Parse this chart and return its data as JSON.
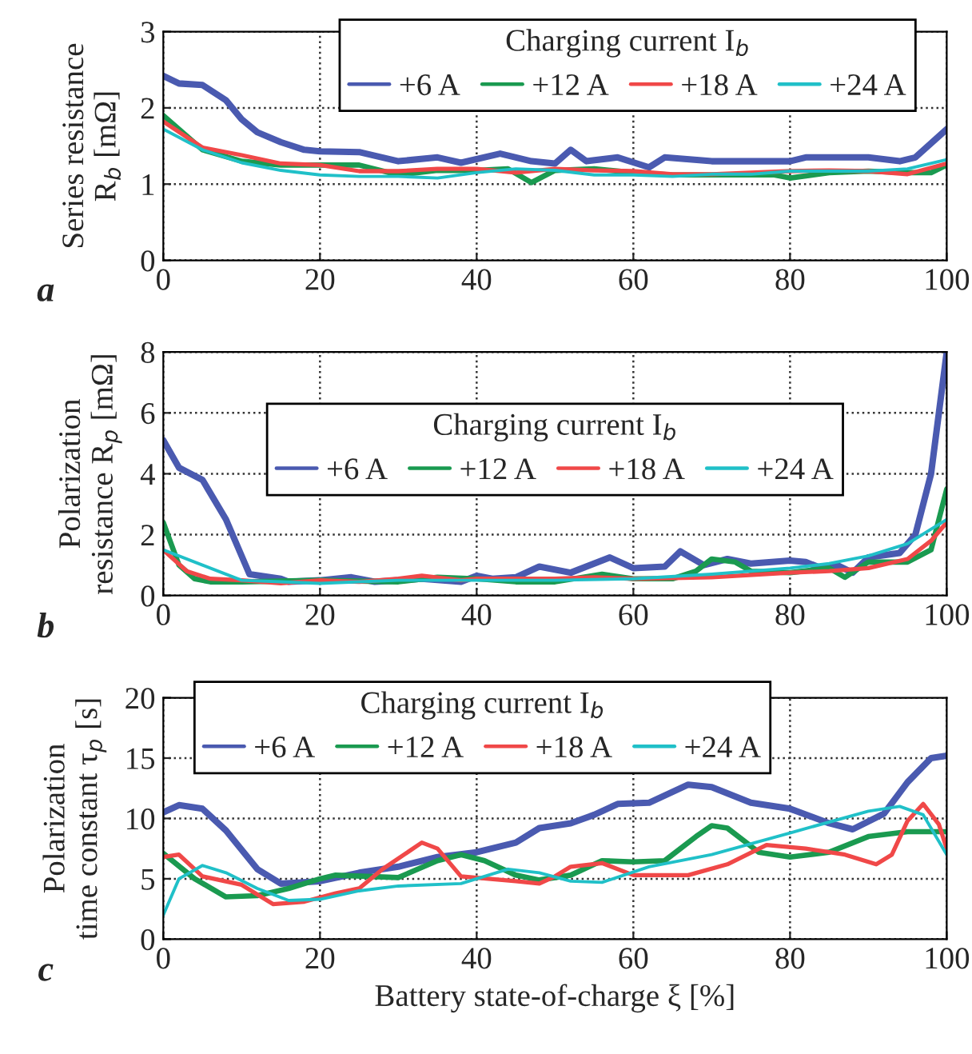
{
  "chart_data": [
    {
      "type": "line",
      "ylabel": "Series resistance\nR$_{b}$ [mΩ]",
      "legend_title": "Charging current I$_{b}$",
      "annotations": [
        "a"
      ],
      "xlim": [
        0,
        100
      ],
      "xticks": [
        0,
        20,
        40,
        60,
        80,
        100
      ],
      "ylim": [
        0,
        3
      ],
      "yticks": [
        0,
        1,
        2,
        3
      ],
      "grid": true,
      "legend": "top right",
      "line_style": "solid",
      "marker": "none",
      "series": [
        {
          "name": "+6 A",
          "color": "#4a5ab0",
          "x": [
            0,
            2,
            5,
            8,
            10,
            12,
            15,
            18,
            20,
            25,
            30,
            35,
            38,
            43,
            47,
            50,
            52,
            54,
            58,
            62,
            64,
            70,
            80,
            82,
            90,
            94,
            96,
            100
          ],
          "values": [
            2.42,
            2.32,
            2.3,
            2.1,
            1.85,
            1.68,
            1.55,
            1.45,
            1.43,
            1.42,
            1.3,
            1.35,
            1.28,
            1.4,
            1.3,
            1.27,
            1.45,
            1.3,
            1.35,
            1.22,
            1.35,
            1.3,
            1.3,
            1.35,
            1.35,
            1.3,
            1.35,
            1.72
          ]
        },
        {
          "name": "+12 A",
          "color": "#1a9a50",
          "x": [
            0,
            5,
            10,
            15,
            20,
            25,
            30,
            35,
            40,
            44,
            47,
            50,
            55,
            60,
            65,
            70,
            78,
            80,
            85,
            90,
            95,
            98,
            100
          ],
          "values": [
            1.9,
            1.45,
            1.3,
            1.25,
            1.25,
            1.25,
            1.12,
            1.18,
            1.18,
            1.2,
            1.02,
            1.18,
            1.2,
            1.15,
            1.12,
            1.12,
            1.12,
            1.08,
            1.15,
            1.17,
            1.15,
            1.15,
            1.25
          ]
        },
        {
          "name": "+18 A",
          "color": "#f04848",
          "x": [
            0,
            5,
            10,
            15,
            20,
            25,
            30,
            35,
            40,
            45,
            50,
            55,
            60,
            65,
            70,
            80,
            85,
            90,
            95,
            100
          ],
          "values": [
            1.82,
            1.48,
            1.38,
            1.27,
            1.25,
            1.17,
            1.17,
            1.2,
            1.2,
            1.15,
            1.2,
            1.18,
            1.17,
            1.13,
            1.13,
            1.17,
            1.18,
            1.17,
            1.13,
            1.27
          ]
        },
        {
          "name": "+24 A",
          "color": "#20c0c8",
          "x": [
            0,
            5,
            10,
            15,
            20,
            25,
            30,
            35,
            40,
            45,
            50,
            55,
            60,
            65,
            70,
            75,
            80,
            85,
            90,
            95,
            100
          ],
          "values": [
            1.72,
            1.45,
            1.28,
            1.18,
            1.12,
            1.1,
            1.1,
            1.08,
            1.15,
            1.2,
            1.18,
            1.12,
            1.12,
            1.1,
            1.13,
            1.13,
            1.17,
            1.17,
            1.17,
            1.2,
            1.32
          ]
        }
      ]
    },
    {
      "type": "line",
      "ylabel": "Polarization\nresistance R$_{p}$ [mΩ]",
      "legend_title": "Charging current I$_{b}$",
      "annotations": [
        "b"
      ],
      "xlim": [
        0,
        100
      ],
      "xticks": [
        0,
        20,
        40,
        60,
        80,
        100
      ],
      "ylim": [
        0,
        8
      ],
      "yticks": [
        0,
        2,
        4,
        6,
        8
      ],
      "grid": true,
      "legend": "center",
      "line_style": "solid",
      "marker": "none",
      "series": [
        {
          "name": "+6 A",
          "color": "#4a5ab0",
          "x": [
            0,
            2,
            5,
            8,
            11,
            15,
            16,
            20,
            24,
            27,
            30,
            33,
            38,
            40,
            42,
            45,
            48,
            52,
            57,
            60,
            64,
            66,
            69,
            72,
            75,
            80,
            82,
            84,
            86,
            88,
            90,
            94,
            96,
            98,
            100
          ],
          "values": [
            5.1,
            4.2,
            3.8,
            2.5,
            0.7,
            0.55,
            0.45,
            0.5,
            0.6,
            0.45,
            0.5,
            0.55,
            0.45,
            0.65,
            0.55,
            0.6,
            0.95,
            0.75,
            1.25,
            0.9,
            0.95,
            1.45,
            1.0,
            1.2,
            1.05,
            1.15,
            1.1,
            0.9,
            1.0,
            0.75,
            1.25,
            1.4,
            2.0,
            4.0,
            8.0
          ]
        },
        {
          "name": "+12 A",
          "color": "#1a9a50",
          "x": [
            0,
            2,
            4,
            6,
            10,
            20,
            30,
            35,
            40,
            45,
            50,
            56,
            60,
            65,
            68,
            70,
            73,
            75,
            80,
            85,
            87,
            90,
            95,
            98,
            100
          ],
          "values": [
            2.4,
            1.0,
            0.55,
            0.45,
            0.45,
            0.5,
            0.45,
            0.6,
            0.55,
            0.45,
            0.45,
            0.7,
            0.55,
            0.55,
            0.8,
            1.2,
            1.1,
            0.8,
            0.75,
            0.9,
            0.6,
            1.1,
            1.1,
            1.5,
            3.5
          ]
        },
        {
          "name": "+18 A",
          "color": "#f04848",
          "x": [
            0,
            3,
            6,
            10,
            15,
            20,
            25,
            30,
            33,
            38,
            40,
            50,
            55,
            60,
            70,
            80,
            85,
            90,
            95,
            98,
            100
          ],
          "values": [
            1.5,
            0.8,
            0.55,
            0.5,
            0.4,
            0.5,
            0.45,
            0.55,
            0.65,
            0.5,
            0.55,
            0.55,
            0.6,
            0.55,
            0.6,
            0.75,
            0.8,
            0.9,
            1.2,
            1.8,
            2.4
          ]
        },
        {
          "name": "+24 A",
          "color": "#20c0c8",
          "x": [
            0,
            5,
            10,
            15,
            20,
            25,
            30,
            40,
            50,
            60,
            70,
            80,
            85,
            90,
            95,
            100
          ],
          "values": [
            1.5,
            1.0,
            0.5,
            0.45,
            0.4,
            0.45,
            0.5,
            0.5,
            0.5,
            0.55,
            0.7,
            0.9,
            1.05,
            1.3,
            1.7,
            2.5
          ]
        }
      ]
    },
    {
      "type": "line",
      "xlabel": "Battery state-of-charge ξ [%]",
      "ylabel": "Polarization\ntime constant τ$_{p}$ [s]",
      "legend_title": "Charging current I$_{b}$",
      "annotations": [
        "c"
      ],
      "xlim": [
        0,
        100
      ],
      "xticks": [
        0,
        20,
        40,
        60,
        80,
        100
      ],
      "ylim": [
        0,
        20
      ],
      "yticks": [
        0,
        5,
        10,
        15,
        20
      ],
      "grid": true,
      "legend": "top left",
      "line_style": "solid",
      "marker": "none",
      "series": [
        {
          "name": "+6 A",
          "color": "#4a5ab0",
          "x": [
            0,
            2,
            5,
            8,
            12,
            15,
            20,
            25,
            30,
            35,
            40,
            45,
            48,
            52,
            55,
            58,
            62,
            67,
            70,
            75,
            80,
            85,
            88,
            92,
            95,
            98,
            100
          ],
          "values": [
            10.5,
            11.1,
            10.8,
            9.0,
            5.8,
            4.6,
            4.8,
            5.5,
            6.0,
            6.8,
            7.2,
            8.0,
            9.2,
            9.6,
            10.3,
            11.2,
            11.3,
            12.8,
            12.6,
            11.3,
            10.8,
            9.6,
            9.1,
            10.4,
            13.0,
            15.0,
            15.2
          ]
        },
        {
          "name": "+12 A",
          "color": "#1a9a50",
          "x": [
            0,
            4,
            8,
            12,
            16,
            20,
            22,
            30,
            35,
            38,
            41,
            45,
            48,
            52,
            56,
            60,
            64,
            68,
            70,
            72,
            76,
            80,
            85,
            90,
            95,
            100
          ],
          "values": [
            7.1,
            5.0,
            3.5,
            3.6,
            4.2,
            5.0,
            5.3,
            5.1,
            6.5,
            7.0,
            6.5,
            5.3,
            4.9,
            5.3,
            6.5,
            6.4,
            6.5,
            8.5,
            9.4,
            9.2,
            7.2,
            6.8,
            7.2,
            8.5,
            8.9,
            8.9
          ]
        },
        {
          "name": "+18 A",
          "color": "#f04848",
          "x": [
            0,
            2,
            5,
            10,
            14,
            18,
            22,
            25,
            28,
            33,
            35,
            38,
            45,
            48,
            50,
            52,
            56,
            60,
            67,
            72,
            77,
            82,
            87,
            91,
            93,
            95,
            97,
            99,
            100
          ],
          "values": [
            6.8,
            7.0,
            5.2,
            4.5,
            2.9,
            3.1,
            3.8,
            4.2,
            5.8,
            8.0,
            7.5,
            5.2,
            4.8,
            4.6,
            5.2,
            6.0,
            6.3,
            5.3,
            5.3,
            6.2,
            7.8,
            7.5,
            7.0,
            6.2,
            7.0,
            9.8,
            11.2,
            9.5,
            7.5
          ]
        },
        {
          "name": "+24 A",
          "color": "#20c0c8",
          "x": [
            0,
            2,
            5,
            8,
            12,
            16,
            20,
            25,
            30,
            38,
            40,
            44,
            48,
            52,
            56,
            62,
            70,
            80,
            90,
            94,
            97,
            100
          ],
          "values": [
            2.0,
            5.0,
            6.1,
            5.5,
            4.2,
            3.2,
            3.3,
            4.0,
            4.4,
            4.6,
            5.0,
            5.8,
            5.5,
            4.8,
            4.7,
            6.0,
            7.0,
            8.8,
            10.6,
            11.0,
            10.3,
            7.0
          ]
        }
      ]
    }
  ]
}
